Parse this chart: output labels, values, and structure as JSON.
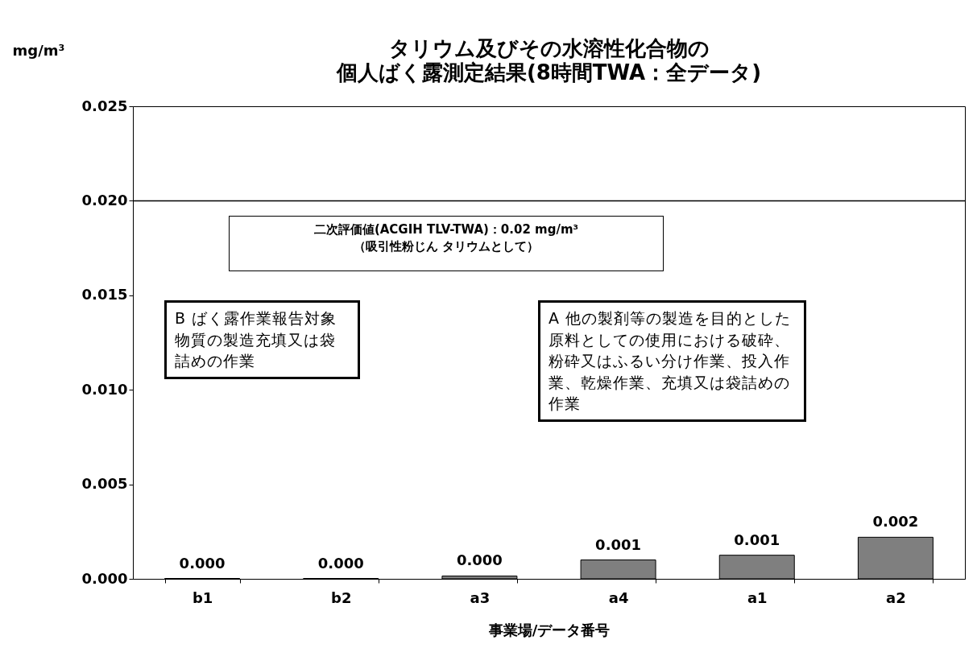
{
  "chart_data": {
    "type": "bar",
    "title": "タリウム及びその水溶性化合物の",
    "subtitle": "個人ばく露測定結果(8時間TWA：全データ)",
    "ylabel": "mg/m³",
    "xlabel": "事業場/データ番号",
    "categories": [
      "b1",
      "b2",
      "a3",
      "a4",
      "a1",
      "a2"
    ],
    "values": [
      2e-05,
      2e-05,
      0.00015,
      0.001,
      0.00125,
      0.0022
    ],
    "value_labels": [
      "0.000",
      "0.000",
      "0.000",
      "0.001",
      "0.001",
      "0.002"
    ],
    "color": "#7f7f7f",
    "ylim": [
      0,
      0.025
    ],
    "yticks": [
      {
        "value": 0,
        "label": "0.000"
      },
      {
        "value": 0.005,
        "label": "0.005"
      },
      {
        "value": 0.01,
        "label": "0.010"
      },
      {
        "value": 0.015,
        "label": "0.015"
      },
      {
        "value": 0.02,
        "label": "0.020"
      },
      {
        "value": 0.025,
        "label": "0.025"
      }
    ],
    "grid": false,
    "ref_lines": [
      {
        "axis": "y",
        "value": 0.02,
        "label": "二次評価値(ACGIH TLV-TWA)：0.02 mg/m³\n（吸引性粉じん タリウムとして）",
        "color": "#000000"
      }
    ],
    "annotations": [
      "B ばく露作業報告対象物質の製造充填又は袋詰めの作業",
      "A  他の製剤等の製造を目的とした原料としての使用における破砕、粉砕又はふるい分け作業、投入作業、乾燥作業、充填又は袋詰めの作業"
    ]
  }
}
